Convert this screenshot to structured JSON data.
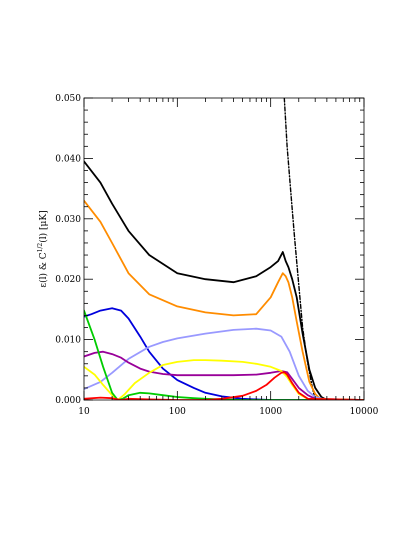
{
  "chart_data": {
    "type": "line",
    "title": "",
    "xlabel": "",
    "ylabel": "ε(l) & C",
    "ylabel_sup": "1/2",
    "ylabel_tail": "(l)  [μK]",
    "xscale": "log",
    "xlim": [
      10,
      10000
    ],
    "ylim": [
      0.0,
      0.05
    ],
    "x_ticks": [
      "10",
      "100",
      "1000",
      "10000"
    ],
    "y_ticks": [
      "0.000",
      "0.010",
      "0.020",
      "0.030",
      "0.040",
      "0.050"
    ],
    "grid": false,
    "legend": "none",
    "series": [
      {
        "color": "#000000",
        "style": "dashdot",
        "x": [
          1400,
          1500,
          1650,
          1800,
          2000,
          2200,
          2500,
          2800,
          3000
        ],
        "y": [
          0.05,
          0.042,
          0.034,
          0.027,
          0.019,
          0.012,
          0.006,
          0.002,
          0.0
        ]
      },
      {
        "color": "#000000",
        "style": "solid",
        "x": [
          10,
          15,
          20,
          30,
          50,
          100,
          200,
          400,
          700,
          1000,
          1200,
          1350,
          1450,
          1550,
          1700,
          1900,
          2200,
          2600,
          3000,
          3500,
          4000,
          10000
        ],
        "y": [
          0.0395,
          0.036,
          0.0325,
          0.028,
          0.024,
          0.021,
          0.02,
          0.0195,
          0.0205,
          0.022,
          0.023,
          0.0245,
          0.023,
          0.022,
          0.02,
          0.017,
          0.011,
          0.005,
          0.002,
          0.0005,
          0.0,
          0.0
        ]
      },
      {
        "color": "#ff8c00",
        "style": "solid",
        "x": [
          10,
          15,
          20,
          30,
          50,
          100,
          200,
          400,
          700,
          1000,
          1200,
          1350,
          1450,
          1550,
          1700,
          1900,
          2200,
          2600,
          3000,
          3500,
          10000
        ],
        "y": [
          0.033,
          0.0295,
          0.026,
          0.021,
          0.0175,
          0.0155,
          0.0145,
          0.014,
          0.0142,
          0.017,
          0.0195,
          0.021,
          0.0205,
          0.0195,
          0.017,
          0.013,
          0.008,
          0.003,
          0.001,
          0.0,
          0.0
        ]
      },
      {
        "color": "#0000dd",
        "style": "solid",
        "x": [
          10,
          12,
          15,
          20,
          25,
          30,
          40,
          50,
          70,
          100,
          150,
          200,
          300,
          500,
          700,
          1000,
          10000
        ],
        "y": [
          0.0138,
          0.0142,
          0.0148,
          0.0152,
          0.0148,
          0.0135,
          0.0105,
          0.008,
          0.0052,
          0.0033,
          0.002,
          0.0012,
          0.0006,
          0.0002,
          0.0001,
          0.0,
          0.0
        ]
      },
      {
        "color": "#9999ff",
        "style": "solid",
        "x": [
          10,
          15,
          20,
          30,
          50,
          70,
          100,
          200,
          400,
          700,
          1000,
          1300,
          1600,
          2000,
          2500,
          3000,
          4000,
          10000
        ],
        "y": [
          0.0018,
          0.003,
          0.0045,
          0.0068,
          0.0088,
          0.0096,
          0.0102,
          0.011,
          0.0116,
          0.0118,
          0.0115,
          0.0105,
          0.008,
          0.004,
          0.0015,
          0.0005,
          0.0,
          0.0
        ]
      },
      {
        "color": "#990099",
        "style": "solid",
        "x": [
          10,
          13,
          16,
          20,
          25,
          30,
          40,
          50,
          70,
          100,
          200,
          400,
          700,
          1000,
          1300,
          1500,
          1700,
          2000,
          2500,
          3000,
          10000
        ],
        "y": [
          0.0072,
          0.0078,
          0.008,
          0.0076,
          0.007,
          0.0062,
          0.0052,
          0.0047,
          0.0043,
          0.0041,
          0.0041,
          0.0041,
          0.0042,
          0.0045,
          0.0048,
          0.0046,
          0.0035,
          0.002,
          0.0008,
          0.0002,
          0.0
        ]
      },
      {
        "color": "#ffff00",
        "style": "solid",
        "x": [
          10,
          13,
          16,
          20,
          23,
          27,
          35,
          50,
          70,
          100,
          150,
          200,
          300,
          500,
          700,
          1000,
          1300,
          1500,
          1700,
          2000,
          2500,
          10000
        ],
        "y": [
          0.0055,
          0.0042,
          0.0025,
          0.0008,
          0.0,
          0.0009,
          0.0028,
          0.0045,
          0.0058,
          0.0063,
          0.0066,
          0.0066,
          0.0065,
          0.0063,
          0.006,
          0.0055,
          0.0048,
          0.0038,
          0.0025,
          0.001,
          0.0002,
          0.0
        ]
      },
      {
        "color": "#00cc00",
        "style": "solid",
        "x": [
          10,
          13,
          16,
          20,
          23,
          26,
          30,
          40,
          50,
          70,
          100,
          150,
          200,
          300,
          500,
          1000,
          10000
        ],
        "y": [
          0.0148,
          0.01,
          0.0055,
          0.0012,
          0.0,
          0.0002,
          0.0008,
          0.0012,
          0.0011,
          0.0008,
          0.0005,
          0.0003,
          0.0002,
          0.0001,
          0.0,
          0.0,
          0.0
        ]
      },
      {
        "color": "#ff0000",
        "style": "solid",
        "x": [
          10,
          15,
          20,
          25,
          30,
          50,
          100,
          200,
          300,
          500,
          700,
          900,
          1100,
          1300,
          1400,
          1500,
          1700,
          2000,
          2500,
          10000
        ],
        "y": [
          0.0002,
          0.0004,
          0.0003,
          0.0,
          0.0002,
          0.0001,
          0.0,
          0.0,
          0.0002,
          0.0007,
          0.0015,
          0.0025,
          0.0037,
          0.0045,
          0.0046,
          0.0042,
          0.0028,
          0.0012,
          0.0002,
          0.0
        ]
      }
    ]
  }
}
